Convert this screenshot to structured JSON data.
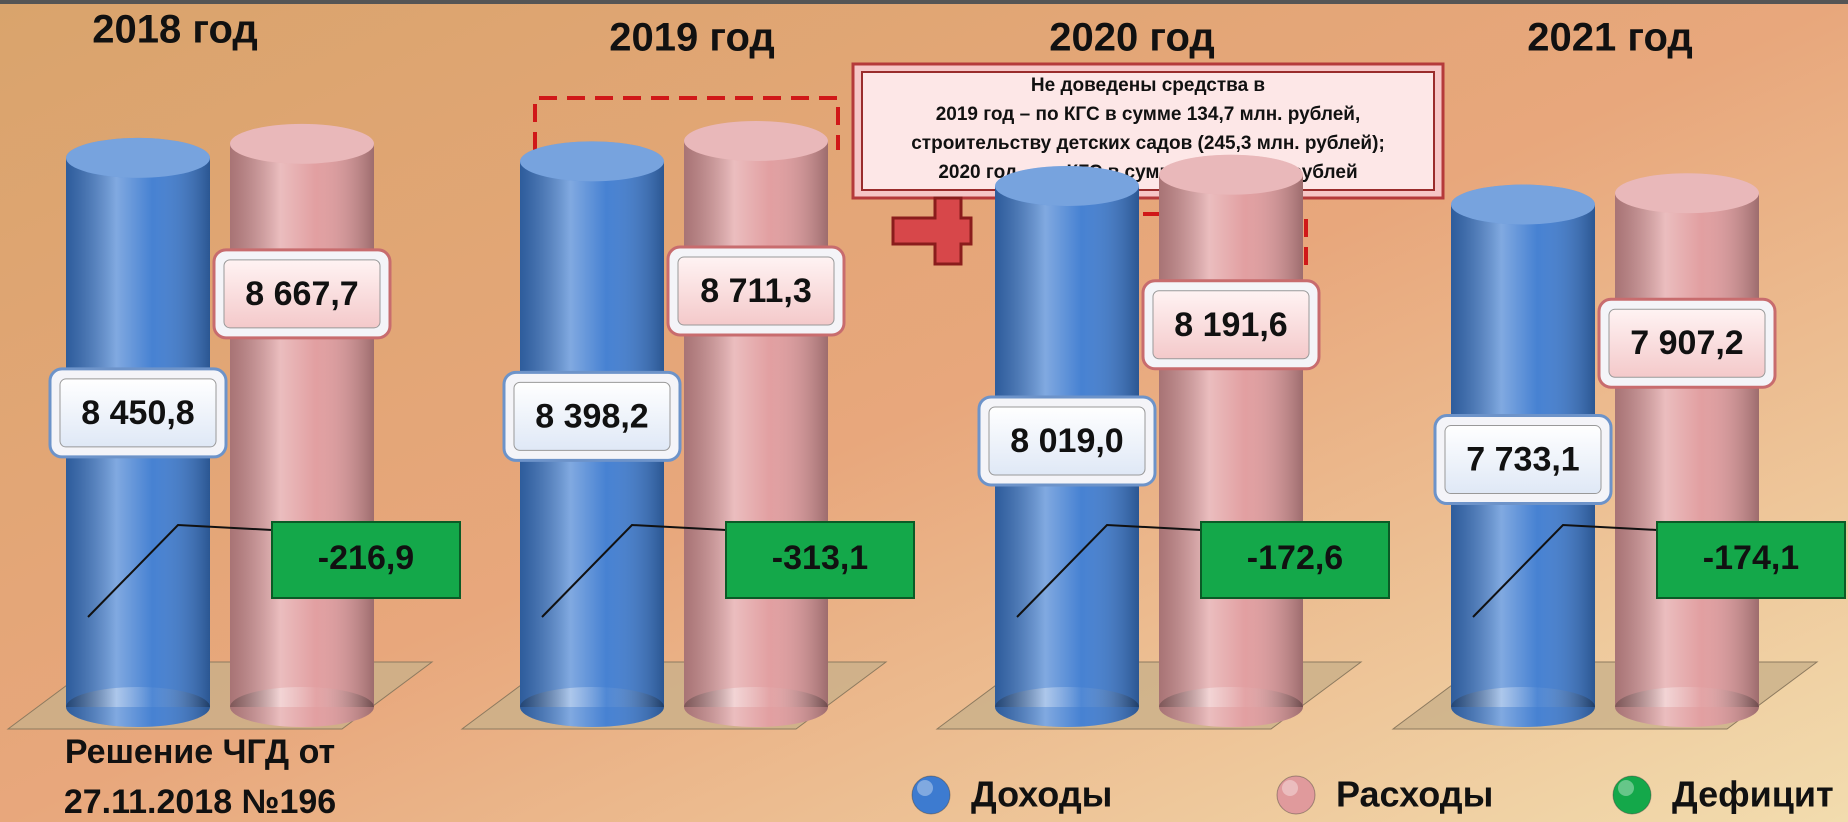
{
  "chart_data": {
    "type": "bar",
    "categories": [
      "2018 год",
      "2019 год",
      "2020 год",
      "2021 год"
    ],
    "series": [
      {
        "name": "Доходы",
        "color": "#3d7bd0",
        "values": [
          8450.8,
          8398.2,
          8019.0,
          7733.1
        ],
        "value_labels": [
          "8 450,8",
          "8 398,2",
          "8 019,0",
          "7 733,1"
        ]
      },
      {
        "name": "Расходы",
        "color": "#e09a9c",
        "values": [
          8667.7,
          8711.3,
          8191.6,
          7907.2
        ],
        "value_labels": [
          "8 667,7",
          "8 711,3",
          "8 191,6",
          "7 907,2"
        ]
      },
      {
        "name": "Дефицит",
        "color": "#14a84a",
        "values": [
          -216.9,
          -313.1,
          -172.6,
          -174.1
        ],
        "value_labels": [
          "-216,9",
          "-313,1",
          "-172,6",
          "-174,1"
        ]
      }
    ],
    "annotation": [
      "Решение ЧГД от",
      "27.11.2018 №196"
    ],
    "note": [
      "Не доведены средства в",
      "2019 год – по КГС в сумме 134,7 млн. рублей,",
      "строительству детских садов (245,3 млн. рублей);",
      "2020 год – по КГС в сумме 134,7 млн. рублей"
    ]
  }
}
